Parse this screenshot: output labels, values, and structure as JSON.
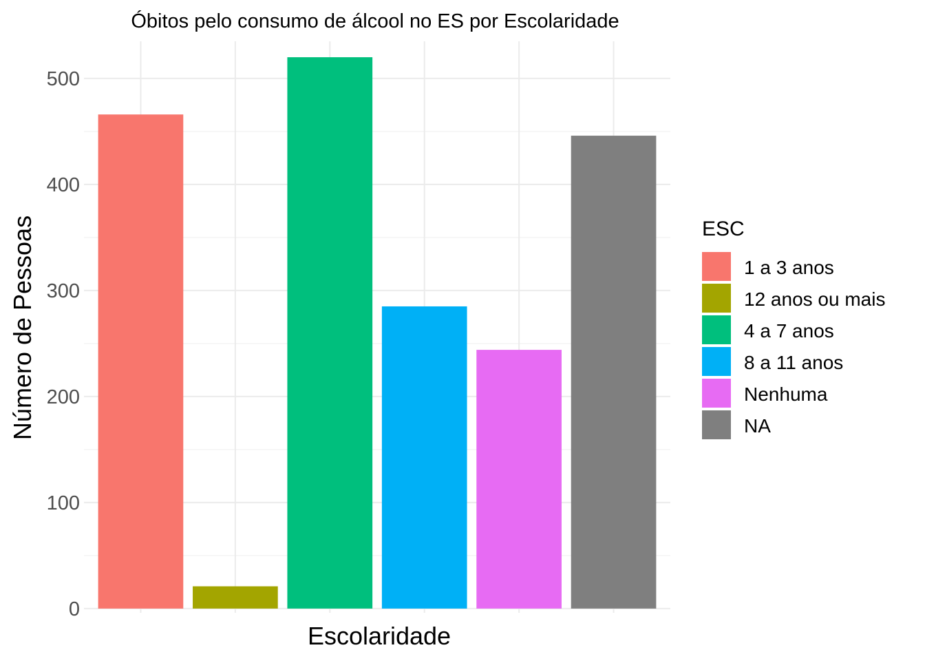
{
  "chart_data": {
    "type": "bar",
    "title": "Óbitos pelo consumo de álcool no ES por Escolaridade",
    "xlabel": "Escolaridade",
    "ylabel": "Número de Pessoas",
    "categories": [
      "1 a 3 anos",
      "12 anos ou mais",
      "4 a 7 anos",
      "8 a 11 anos",
      "Nenhuma",
      "NA"
    ],
    "values": [
      466,
      21,
      520,
      285,
      244,
      446
    ],
    "colors": [
      "#F8766D",
      "#A3A500",
      "#00BF7D",
      "#00B0F6",
      "#E76BF3",
      "#7F7F7F"
    ],
    "ylim": [
      -4,
      535
    ],
    "yticks": [
      0,
      100,
      200,
      300,
      400,
      500
    ],
    "grid": true,
    "x_tick_labels_shown": false,
    "legend": {
      "title": "ESC",
      "position": "right",
      "entries": [
        "1 a 3 anos",
        "12 anos ou mais",
        "4 a 7 anos",
        "8 a 11 anos",
        "Nenhuma",
        "NA"
      ]
    }
  }
}
